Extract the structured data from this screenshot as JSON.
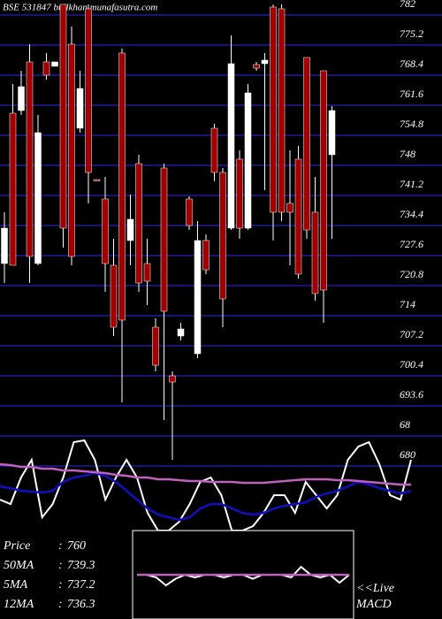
{
  "title": "BSE 531847 bullkhan.munafasutra.com",
  "chart_data": {
    "type": "candlestick",
    "open": [
      723.4,
      757.4,
      758,
      769,
      723.4,
      769,
      768,
      782,
      773,
      754,
      781,
      742.4,
      738,
      723,
      771,
      728.6,
      746,
      723.4,
      709,
      745,
      698,
      707,
      738,
      703,
      728.6,
      754,
      744,
      731.4,
      747,
      731.4,
      768.4,
      768.6,
      781.4,
      781,
      737,
      747,
      770,
      735,
      767,
      748
    ],
    "high": [
      735,
      764,
      767,
      773,
      757,
      771,
      769,
      782,
      777,
      767,
      782,
      742.4,
      743,
      729,
      772,
      739,
      748,
      729,
      711,
      746,
      699,
      710,
      738.6,
      733,
      730,
      755,
      745,
      775,
      749,
      764,
      769,
      771,
      782,
      782,
      749,
      750,
      770,
      743,
      767,
      759
    ],
    "low": [
      719,
      723,
      757,
      719,
      723,
      765,
      768,
      727,
      723,
      753,
      737,
      742.2,
      717,
      707,
      692,
      723,
      717,
      714,
      699,
      688,
      679,
      706,
      731,
      702,
      721,
      742,
      709,
      731,
      729,
      731,
      767,
      740,
      728.6,
      733,
      723,
      720,
      729,
      715,
      710,
      729
    ],
    "close": [
      731.4,
      723,
      763.4,
      725,
      753,
      766,
      769,
      731.4,
      725,
      763,
      744,
      742.2,
      723.4,
      709,
      710.6,
      733.4,
      719,
      719.4,
      700.4,
      712.6,
      696.6,
      708.6,
      732,
      728.6,
      722,
      744,
      715.4,
      768.6,
      731.4,
      762,
      767.6,
      769.4,
      735,
      735,
      735,
      721,
      731,
      716.6,
      717.4,
      758
    ],
    "up_color": "#ffffff",
    "down_color": "#a00000",
    "wick_color": "#ffffff",
    "ylim": [
      643,
      782
    ],
    "yticks": [
      782,
      775.2,
      768.4,
      761.6,
      754.8,
      748,
      741.2,
      734.4,
      727.6,
      720.8,
      714,
      707.2,
      700.4,
      693.6,
      {
        "value": 686.8,
        "label": "68"
      },
      680
    ],
    "grid": true,
    "grid_color": "#1c1c9a"
  },
  "indicators": {
    "type": "line",
    "ylim": [
      0,
      110
    ],
    "series": [
      {
        "color": "#ffffff",
        "values": [
          35,
          30,
          60,
          80,
          15,
          30,
          60,
          100,
          102,
          80,
          35,
          60,
          80,
          60,
          20,
          0,
          0,
          10,
          30,
          55,
          60,
          40,
          0,
          0,
          5,
          20,
          40,
          40,
          20,
          55,
          40,
          25,
          40,
          80,
          95,
          100,
          75,
          40,
          35,
          80
        ]
      },
      {
        "color": "#1010c0",
        "values": [
          50,
          48,
          45,
          44,
          43,
          45,
          55,
          60,
          62,
          65,
          62,
          55,
          45,
          35,
          25,
          18,
          15,
          12,
          15,
          25,
          30,
          30,
          25,
          20,
          18,
          20,
          25,
          28,
          30,
          32,
          38,
          42,
          45,
          50,
          55,
          52,
          48,
          45,
          42,
          45
        ]
      },
      {
        "color": "#c060c0",
        "values": [
          75,
          74,
          72,
          72,
          70,
          70,
          68,
          68,
          67,
          66,
          65,
          63,
          62,
          60,
          60,
          58,
          58,
          57,
          56,
          56,
          55,
          55,
          55,
          54,
          54,
          54,
          55,
          56,
          57,
          58,
          58,
          58,
          57,
          57,
          56,
          55,
          54,
          53,
          52,
          52
        ]
      }
    ]
  },
  "macd": {
    "type": "line",
    "ylim": [
      -20,
      20
    ],
    "series": [
      {
        "color": "#ffffff",
        "values": [
          0,
          0,
          -2,
          -8,
          -3,
          0,
          -2,
          0,
          0,
          -2,
          0,
          0,
          -3,
          0,
          0,
          0,
          -2,
          6,
          0,
          -2,
          0,
          -6,
          0
        ]
      },
      {
        "color": "#c060c0",
        "values": [
          0,
          0,
          0,
          0,
          0,
          0,
          0,
          0,
          0,
          0,
          0,
          0,
          0,
          0,
          0,
          0,
          0,
          0,
          0,
          0,
          0,
          0,
          0
        ]
      }
    ]
  },
  "stats_separator": ":",
  "stats": [
    {
      "label": "Price",
      "value": 760
    },
    {
      "label": "50MA",
      "value": 739.3
    },
    {
      "label": "5MA",
      "value": 737.2
    },
    {
      "label": "12MA",
      "value": 736.3
    }
  ],
  "live_label": "<<Live",
  "macd_label": "MACD"
}
